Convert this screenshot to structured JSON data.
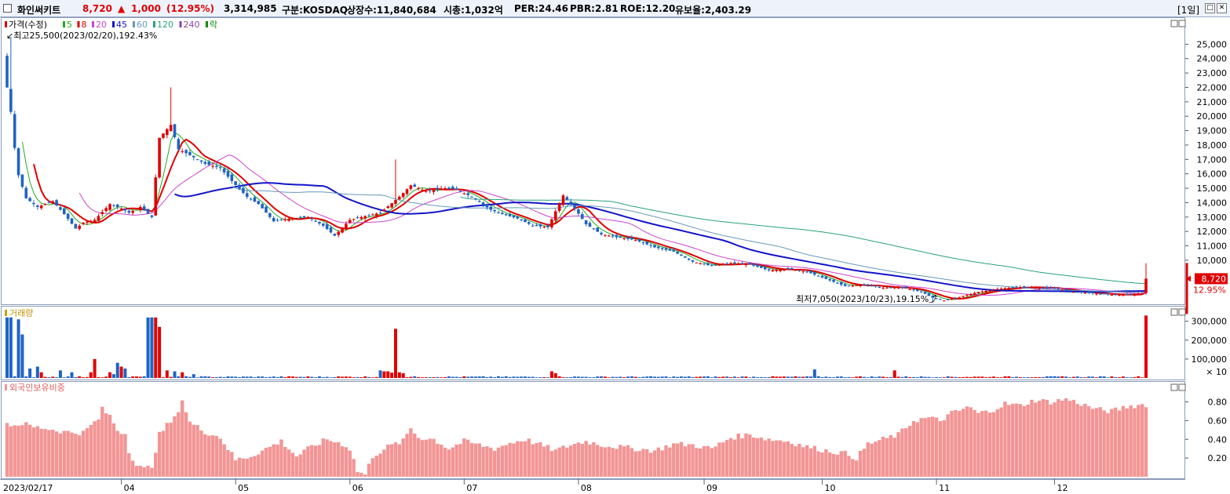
{
  "header": {
    "stock_name": "화인써키트",
    "price": "8,720",
    "change_arrow": "▲",
    "change": "1,000",
    "change_pct": "(12.95%)",
    "volume": "3,314,985",
    "market": "구분:KOSDAQ",
    "shares": "상장수:11,840,684",
    "market_cap": "시총:1,032억",
    "per": "PER:24.46",
    "pbr": "PBR:2.81",
    "roe": "ROE:12.20",
    "reserve": "유보율:2,403.29",
    "period": "[1일]"
  },
  "colors": {
    "up": "#e00000",
    "down": "#1f63c4",
    "ma5": "#22aa22",
    "ma8": "#e00000",
    "ma20": "#cc44cc",
    "ma45": "#1414c8",
    "ma60": "#6699bb",
    "ma120": "#2aa080",
    "foreign": "#f29595"
  },
  "chart_data": [
    {
      "type": "candlestick",
      "title": "가격(수정)",
      "legend": [
        {
          "label": "가격(수정)",
          "color": "#e00000"
        },
        {
          "label": "5",
          "color": "#22aa22"
        },
        {
          "label": "8",
          "color": "#e00000"
        },
        {
          "label": "20",
          "color": "#cc44cc"
        },
        {
          "label": "45",
          "color": "#1414c8"
        },
        {
          "label": "60",
          "color": "#6699bb"
        },
        {
          "label": "120",
          "color": "#2aa080"
        },
        {
          "label": "240",
          "color": "#8844aa"
        },
        {
          "label": "락",
          "color": "#118811"
        }
      ],
      "ylim": [
        7000,
        26000
      ],
      "yticks": [
        "25,000",
        "24,000",
        "23,000",
        "22,000",
        "21,000",
        "20,000",
        "19,000",
        "18,000",
        "17,000",
        "16,000",
        "15,000",
        "14,000",
        "13,000",
        "12,000",
        "11,000",
        "10,000"
      ],
      "ytick_values": [
        25000,
        24000,
        23000,
        22000,
        21000,
        20000,
        19000,
        18000,
        17000,
        16000,
        15000,
        14000,
        13000,
        12000,
        11000,
        10000
      ],
      "x_labels": [
        "2023/02/17",
        "04",
        "05",
        "06",
        "07",
        "08",
        "09",
        "10",
        "11",
        "12"
      ],
      "x_label_index": [
        0,
        30,
        60,
        90,
        120,
        150,
        183,
        214,
        244,
        275
      ],
      "candle_count": 300,
      "close_anchors": [
        [
          0,
          22000
        ],
        [
          1,
          20300
        ],
        [
          2,
          17800
        ],
        [
          3,
          15900
        ],
        [
          5,
          14300
        ],
        [
          8,
          13700
        ],
        [
          12,
          14100
        ],
        [
          15,
          13200
        ],
        [
          18,
          12200
        ],
        [
          20,
          12600
        ],
        [
          23,
          12800
        ],
        [
          27,
          13900
        ],
        [
          30,
          13600
        ],
        [
          32,
          13300
        ],
        [
          35,
          13700
        ],
        [
          38,
          13000
        ],
        [
          40,
          18500
        ],
        [
          43,
          19400
        ],
        [
          45,
          17700
        ],
        [
          48,
          17300
        ],
        [
          52,
          16700
        ],
        [
          56,
          16400
        ],
        [
          59,
          15500
        ],
        [
          63,
          14400
        ],
        [
          66,
          13900
        ],
        [
          70,
          12700
        ],
        [
          74,
          12900
        ],
        [
          79,
          13000
        ],
        [
          83,
          12400
        ],
        [
          86,
          11700
        ],
        [
          90,
          12800
        ],
        [
          93,
          13000
        ],
        [
          98,
          13300
        ],
        [
          103,
          14400
        ],
        [
          106,
          15200
        ],
        [
          110,
          14800
        ],
        [
          115,
          15000
        ],
        [
          118,
          14900
        ],
        [
          122,
          14400
        ],
        [
          127,
          13500
        ],
        [
          130,
          13200
        ],
        [
          134,
          12900
        ],
        [
          138,
          12400
        ],
        [
          142,
          12300
        ],
        [
          146,
          14500
        ],
        [
          149,
          13600
        ],
        [
          152,
          12500
        ],
        [
          156,
          11800
        ],
        [
          160,
          11600
        ],
        [
          165,
          11400
        ],
        [
          170,
          10900
        ],
        [
          175,
          10600
        ],
        [
          180,
          9900
        ],
        [
          185,
          9600
        ],
        [
          190,
          9800
        ],
        [
          195,
          9700
        ],
        [
          200,
          9300
        ],
        [
          205,
          9400
        ],
        [
          210,
          9200
        ],
        [
          215,
          8700
        ],
        [
          220,
          8200
        ],
        [
          225,
          8300
        ],
        [
          230,
          8100
        ],
        [
          235,
          8100
        ],
        [
          240,
          7800
        ],
        [
          243,
          7400
        ],
        [
          246,
          7200
        ],
        [
          250,
          7450
        ],
        [
          255,
          7800
        ],
        [
          260,
          8000
        ],
        [
          265,
          8150
        ],
        [
          270,
          8100
        ],
        [
          275,
          8050
        ],
        [
          280,
          7800
        ],
        [
          285,
          7700
        ],
        [
          290,
          7600
        ],
        [
          295,
          7600
        ],
        [
          298,
          7720
        ],
        [
          299,
          8720
        ]
      ],
      "current_price": "8,720",
      "current_change": "12.95%",
      "annotations": {
        "high": "최고25,500(2023/02/20),192.43%",
        "low": "최저7,050(2023/10/23),19.15%"
      }
    },
    {
      "type": "bar",
      "title": "거래량",
      "yticks": [
        "300,000",
        "200,000",
        "100,000"
      ],
      "ytick_values": [
        300000,
        200000,
        100000
      ],
      "ylim": [
        0,
        340000
      ],
      "unit": "× 10",
      "spikes": [
        [
          0,
          320000
        ],
        [
          1,
          320000
        ],
        [
          3,
          310000
        ],
        [
          4,
          230000
        ],
        [
          6,
          50000
        ],
        [
          8,
          60000
        ],
        [
          9,
          30000
        ],
        [
          14,
          40000
        ],
        [
          17,
          30000
        ],
        [
          22,
          30000
        ],
        [
          23,
          100000
        ],
        [
          27,
          30000
        ],
        [
          28,
          20000
        ],
        [
          29,
          80000
        ],
        [
          30,
          60000
        ],
        [
          31,
          50000
        ],
        [
          37,
          320000
        ],
        [
          38,
          320000
        ],
        [
          39,
          320000
        ],
        [
          40,
          270000
        ],
        [
          42,
          40000
        ],
        [
          44,
          35000
        ],
        [
          46,
          30000
        ],
        [
          49,
          20000
        ],
        [
          98,
          40000
        ],
        [
          99,
          35000
        ],
        [
          100,
          35000
        ],
        [
          101,
          28000
        ],
        [
          102,
          260000
        ],
        [
          103,
          30000
        ],
        [
          104,
          25000
        ],
        [
          143,
          35000
        ],
        [
          144,
          25000
        ],
        [
          212,
          45000
        ],
        [
          233,
          40000
        ],
        [
          299,
          330000
        ]
      ],
      "base_volume": 6000
    },
    {
      "type": "bar",
      "title": "외국인보유비중",
      "yticks": [
        "0.80",
        "0.60",
        "0.40",
        "0.20"
      ],
      "ytick_values": [
        0.8,
        0.6,
        0.4,
        0.2
      ],
      "ylim": [
        0,
        0.93
      ],
      "value_anchors": [
        [
          0,
          0.57
        ],
        [
          2,
          0.55
        ],
        [
          4,
          0.57
        ],
        [
          7,
          0.53
        ],
        [
          10,
          0.52
        ],
        [
          15,
          0.48
        ],
        [
          20,
          0.47
        ],
        [
          24,
          0.62
        ],
        [
          25,
          0.72
        ],
        [
          27,
          0.65
        ],
        [
          29,
          0.5
        ],
        [
          31,
          0.46
        ],
        [
          32,
          0.28
        ],
        [
          34,
          0.12
        ],
        [
          36,
          0.08
        ],
        [
          38,
          0.12
        ],
        [
          40,
          0.45
        ],
        [
          42,
          0.55
        ],
        [
          44,
          0.62
        ],
        [
          46,
          0.82
        ],
        [
          48,
          0.58
        ],
        [
          52,
          0.48
        ],
        [
          56,
          0.42
        ],
        [
          60,
          0.18
        ],
        [
          64,
          0.22
        ],
        [
          68,
          0.3
        ],
        [
          72,
          0.38
        ],
        [
          76,
          0.22
        ],
        [
          80,
          0.32
        ],
        [
          84,
          0.4
        ],
        [
          88,
          0.35
        ],
        [
          90,
          0.3
        ],
        [
          92,
          0.06
        ],
        [
          94,
          0.02
        ],
        [
          96,
          0.22
        ],
        [
          100,
          0.32
        ],
        [
          104,
          0.38
        ],
        [
          106,
          0.52
        ],
        [
          108,
          0.42
        ],
        [
          112,
          0.4
        ],
        [
          116,
          0.3
        ],
        [
          120,
          0.38
        ],
        [
          124,
          0.34
        ],
        [
          128,
          0.3
        ],
        [
          132,
          0.36
        ],
        [
          136,
          0.4
        ],
        [
          140,
          0.34
        ],
        [
          144,
          0.28
        ],
        [
          148,
          0.34
        ],
        [
          152,
          0.38
        ],
        [
          156,
          0.34
        ],
        [
          160,
          0.32
        ],
        [
          165,
          0.3
        ],
        [
          170,
          0.28
        ],
        [
          175,
          0.35
        ],
        [
          180,
          0.34
        ],
        [
          185,
          0.3
        ],
        [
          190,
          0.42
        ],
        [
          195,
          0.45
        ],
        [
          200,
          0.4
        ],
        [
          205,
          0.38
        ],
        [
          210,
          0.32
        ],
        [
          215,
          0.28
        ],
        [
          220,
          0.25
        ],
        [
          223,
          0.2
        ],
        [
          226,
          0.35
        ],
        [
          230,
          0.4
        ],
        [
          234,
          0.45
        ],
        [
          238,
          0.6
        ],
        [
          242,
          0.63
        ],
        [
          245,
          0.6
        ],
        [
          248,
          0.68
        ],
        [
          250,
          0.7
        ],
        [
          252,
          0.75
        ],
        [
          255,
          0.68
        ],
        [
          258,
          0.7
        ],
        [
          262,
          0.78
        ],
        [
          266,
          0.76
        ],
        [
          270,
          0.82
        ],
        [
          274,
          0.8
        ],
        [
          278,
          0.83
        ],
        [
          282,
          0.78
        ],
        [
          286,
          0.72
        ],
        [
          290,
          0.7
        ],
        [
          294,
          0.75
        ],
        [
          298,
          0.77
        ]
      ]
    }
  ]
}
